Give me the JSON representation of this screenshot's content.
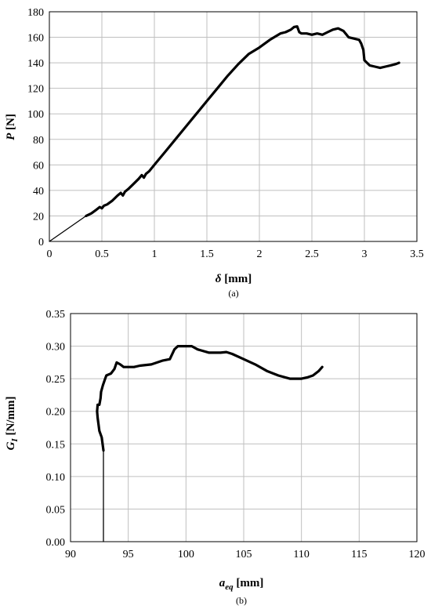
{
  "chart_data": [
    {
      "type": "line",
      "caption": "(a)",
      "xlabel": {
        "main": "δ",
        "unit": " [mm]"
      },
      "ylabel": {
        "main": "P",
        "unit": " [N]"
      },
      "xlim": [
        0,
        3.5
      ],
      "ylim": [
        0,
        180
      ],
      "xticks": [
        "0",
        "0.5",
        "1",
        "1.5",
        "2",
        "2.5",
        "3",
        "3.5"
      ],
      "yticks": [
        "0",
        "20",
        "40",
        "60",
        "80",
        "100",
        "120",
        "140",
        "160",
        "180"
      ],
      "grid": true,
      "series": [
        {
          "x": [
            0,
            0.35
          ],
          "y": [
            0,
            20
          ],
          "stroke": "thin"
        },
        {
          "x": [
            0.35,
            0.4,
            0.45,
            0.48,
            0.5,
            0.52,
            0.55,
            0.6,
            0.65,
            0.68,
            0.7,
            0.72,
            0.75,
            0.8,
            0.85,
            0.88,
            0.9,
            0.92,
            0.95,
            1.0,
            1.1,
            1.2,
            1.3,
            1.4,
            1.5,
            1.6,
            1.7,
            1.8,
            1.9,
            2.0,
            2.1,
            2.2,
            2.25,
            2.3,
            2.33,
            2.36,
            2.38,
            2.4,
            2.45,
            2.5,
            2.55,
            2.6,
            2.65,
            2.7,
            2.75,
            2.8,
            2.83,
            2.85,
            2.9,
            2.95,
            2.97,
            2.99,
            3.0,
            3.05,
            3.1,
            3.15,
            3.2,
            3.25,
            3.3,
            3.33
          ],
          "y": [
            20,
            22,
            25,
            27,
            26,
            28,
            29,
            32,
            36,
            38,
            36,
            39,
            41,
            45,
            49,
            52,
            50,
            53,
            55,
            60,
            70,
            80,
            90,
            100,
            110,
            120,
            130,
            139,
            147,
            152,
            158,
            163,
            164,
            166,
            168,
            168.5,
            164,
            163,
            163,
            162,
            163,
            162,
            164,
            166,
            167,
            165,
            162,
            160,
            159,
            158,
            155,
            150,
            142,
            138,
            137,
            136,
            137,
            138,
            139,
            140
          ],
          "stroke": "thick"
        }
      ]
    },
    {
      "type": "line",
      "caption": "(b)",
      "xlabel": {
        "main": "a",
        "sub": "eq",
        "unit": " [mm]"
      },
      "ylabel": {
        "main": "G",
        "sub": "I",
        "unit": " [N/mm]"
      },
      "xlim": [
        90,
        120
      ],
      "ylim": [
        0,
        0.35
      ],
      "xticks": [
        "90",
        "95",
        "100",
        "105",
        "110",
        "115",
        "120"
      ],
      "yticks": [
        "0.00",
        "0.05",
        "0.10",
        "0.15",
        "0.20",
        "0.25",
        "0.30",
        "0.35"
      ],
      "grid": true,
      "series": [
        {
          "x": [
            92.85,
            92.85
          ],
          "y": [
            0.0,
            0.14
          ],
          "stroke": "thin"
        },
        {
          "x": [
            92.85,
            92.7,
            92.5,
            92.35,
            92.3,
            92.35,
            92.5,
            92.6,
            92.65,
            92.8,
            93.0,
            93.1,
            93.5,
            93.8,
            94.0,
            94.3,
            94.6,
            95.0,
            95.5,
            96.0,
            97.0,
            97.5,
            98.0,
            98.6,
            99.0,
            99.3,
            100.0,
            100.5,
            101.0,
            102.0,
            103.0,
            103.5,
            104.0,
            105.0,
            106.0,
            107.0,
            108.0,
            109.0,
            110.0,
            110.5,
            111.0,
            111.5,
            111.8
          ],
          "y": [
            0.14,
            0.16,
            0.17,
            0.19,
            0.2,
            0.21,
            0.21,
            0.22,
            0.23,
            0.24,
            0.25,
            0.255,
            0.258,
            0.265,
            0.275,
            0.272,
            0.268,
            0.268,
            0.268,
            0.27,
            0.272,
            0.275,
            0.278,
            0.28,
            0.295,
            0.3,
            0.3,
            0.3,
            0.295,
            0.29,
            0.29,
            0.291,
            0.288,
            0.28,
            0.272,
            0.262,
            0.255,
            0.25,
            0.25,
            0.252,
            0.255,
            0.262,
            0.268
          ],
          "stroke": "thick"
        }
      ]
    }
  ]
}
